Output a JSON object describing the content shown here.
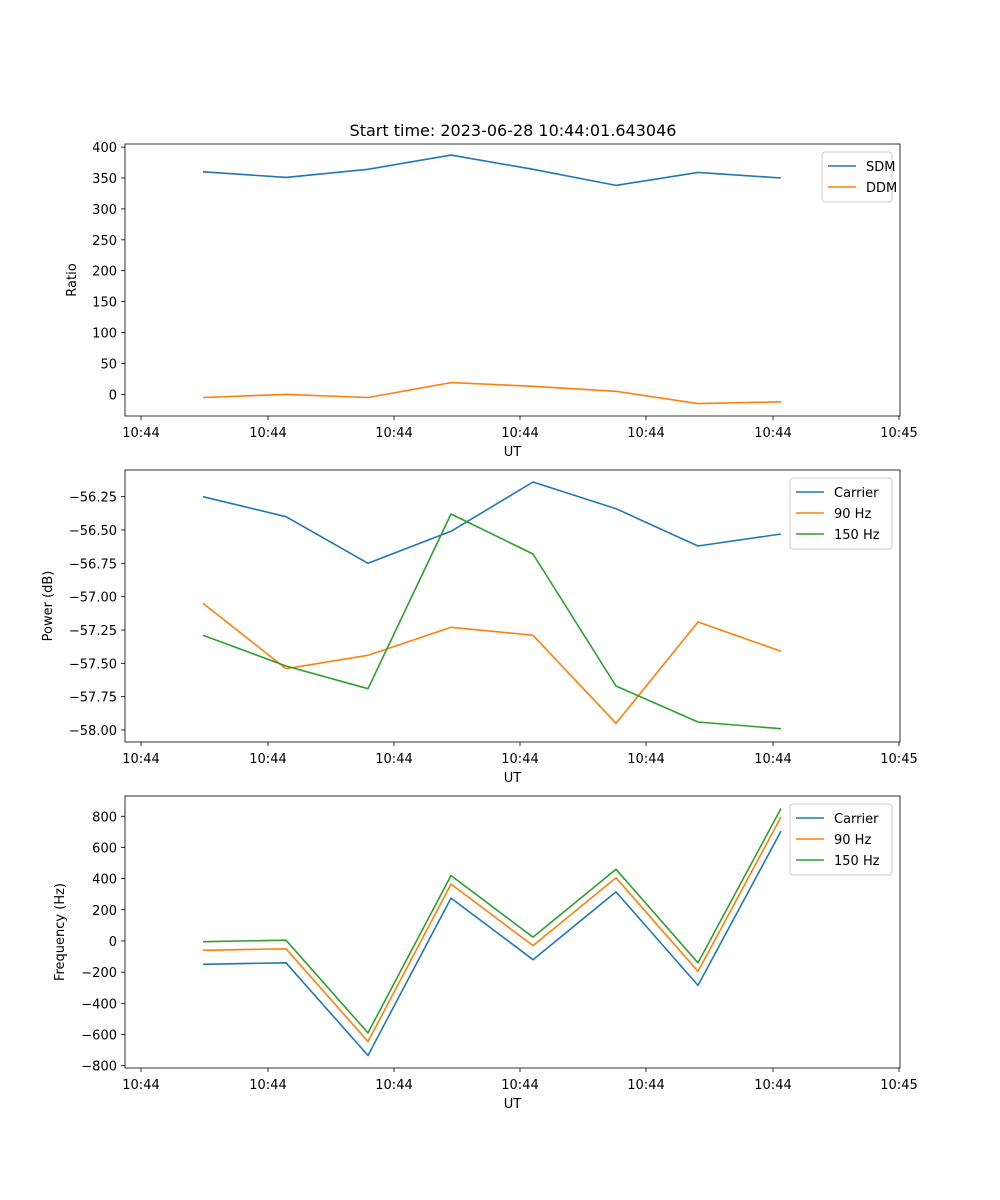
{
  "figure": {
    "title": "Start time: 2023-06-28 10:44:01.643046"
  },
  "chart_data": [
    {
      "type": "line",
      "title": "Start time: 2023-06-28 10:44:01.643046",
      "xlabel": "UT",
      "ylabel": "Ratio",
      "x_tick_labels": [
        "10:44",
        "10:44",
        "10:44",
        "10:44",
        "10:44",
        "10:44",
        "10:45"
      ],
      "y_ticks": [
        0,
        50,
        100,
        150,
        200,
        250,
        300,
        350,
        400
      ],
      "y_tick_labels": [
        "0",
        "50",
        "100",
        "150",
        "200",
        "250",
        "300",
        "350",
        "400"
      ],
      "ylim": [
        -35,
        405
      ],
      "grid": false,
      "legend_position": "top-right",
      "series": [
        {
          "name": "SDM",
          "color": "#1f77b4",
          "values": [
            360,
            351,
            364,
            387,
            364,
            338,
            359,
            350
          ]
        },
        {
          "name": "DDM",
          "color": "#ff7f0e",
          "values": [
            -5,
            0,
            -5,
            19,
            13,
            5,
            -15,
            -12
          ]
        }
      ]
    },
    {
      "type": "line",
      "title": "",
      "xlabel": "UT",
      "ylabel": "Power (dB)",
      "x_tick_labels": [
        "10:44",
        "10:44",
        "10:44",
        "10:44",
        "10:44",
        "10:44",
        "10:45"
      ],
      "y_ticks": [
        -58.0,
        -57.75,
        -57.5,
        -57.25,
        -57.0,
        -56.75,
        -56.5,
        -56.25
      ],
      "y_tick_labels": [
        "−58.00",
        "−57.75",
        "−57.50",
        "−57.25",
        "−57.00",
        "−56.75",
        "−56.50",
        "−56.25"
      ],
      "ylim": [
        -58.09,
        -56.05
      ],
      "grid": false,
      "legend_position": "top-right",
      "series": [
        {
          "name": "Carrier",
          "color": "#1f77b4",
          "values": [
            -56.25,
            -56.4,
            -56.75,
            -56.51,
            -56.14,
            -56.34,
            -56.62,
            -56.53
          ]
        },
        {
          "name": "90 Hz",
          "color": "#ff7f0e",
          "values": [
            -57.05,
            -57.54,
            -57.44,
            -57.23,
            -57.29,
            -57.95,
            -57.19,
            -57.41
          ]
        },
        {
          "name": "150 Hz",
          "color": "#2ca02c",
          "values": [
            -57.29,
            -57.52,
            -57.69,
            -56.38,
            -56.68,
            -57.67,
            -57.94,
            -57.99
          ]
        }
      ]
    },
    {
      "type": "line",
      "title": "",
      "xlabel": "UT",
      "ylabel": "Frequency (Hz)",
      "x_tick_labels": [
        "10:44",
        "10:44",
        "10:44",
        "10:44",
        "10:44",
        "10:44",
        "10:45"
      ],
      "y_ticks": [
        -800,
        -600,
        -400,
        -200,
        0,
        200,
        400,
        600,
        800
      ],
      "y_tick_labels": [
        "−800",
        "−600",
        "−400",
        "−200",
        "0",
        "200",
        "400",
        "600",
        "800"
      ],
      "ylim": [
        -815,
        930
      ],
      "grid": false,
      "legend_position": "top-right",
      "series": [
        {
          "name": "Carrier",
          "color": "#1f77b4",
          "values": [
            -150,
            -140,
            -735,
            275,
            -120,
            315,
            -285,
            705
          ]
        },
        {
          "name": "90 Hz",
          "color": "#ff7f0e",
          "values": [
            -60,
            -50,
            -645,
            365,
            -30,
            405,
            -195,
            795
          ]
        },
        {
          "name": "150 Hz",
          "color": "#2ca02c",
          "values": [
            -5,
            5,
            -590,
            420,
            25,
            460,
            -140,
            850
          ]
        }
      ]
    }
  ]
}
